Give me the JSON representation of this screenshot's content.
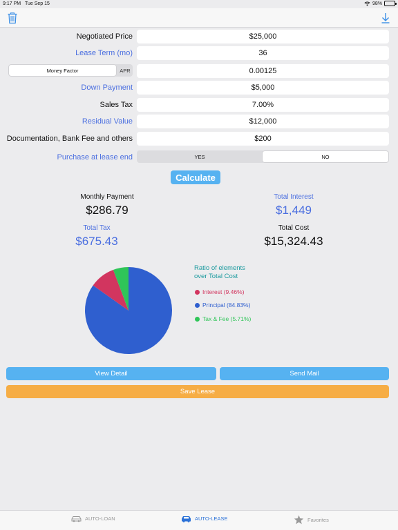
{
  "status_bar": {
    "time": "9:17 PM",
    "date": "Tue Sep 15",
    "battery": "98%"
  },
  "form": {
    "negotiated_price": {
      "label": "Negotiated Price",
      "value": "$25,000"
    },
    "lease_term": {
      "label": "Lease Term (mo)",
      "value": "36"
    },
    "rate_type": {
      "selected": "Money Factor",
      "other": "APR",
      "value": "0.00125"
    },
    "down_payment": {
      "label": "Down Payment",
      "value": "$5,000"
    },
    "sales_tax": {
      "label": "Sales Tax",
      "value": "7.00%"
    },
    "residual_value": {
      "label": "Residual Value",
      "value": "$12,000"
    },
    "fees": {
      "label": "Documentation, Bank Fee  and others",
      "value": "$200"
    },
    "purchase_at_end": {
      "label": "Purchase at lease end",
      "yes": "YES",
      "no": "NO",
      "selected": "NO"
    }
  },
  "calculate_label": "Calculate",
  "results": {
    "monthly_payment": {
      "label": "Monthly Payment",
      "value": "$286.79"
    },
    "total_interest": {
      "label": "Total Interest",
      "value": "$1,449"
    },
    "total_tax": {
      "label": "Total Tax",
      "value": "$675.43"
    },
    "total_cost": {
      "label": "Total Cost",
      "value": "$15,324.43"
    }
  },
  "chart_data": {
    "type": "pie",
    "title": "Ratio of elements over Total Cost",
    "title_lines": [
      "Ratio of elements",
      "over Total Cost"
    ],
    "slices": [
      {
        "name": "Interest",
        "percent": 9.46,
        "label": "Interest (9.46%)",
        "color": "#d2355f"
      },
      {
        "name": "Principal",
        "percent": 84.83,
        "label": "Principal (84.83%)",
        "color": "#2f5fcf"
      },
      {
        "name": "Tax & Fee",
        "percent": 5.71,
        "label": "Tax & Fee (5.71%)",
        "color": "#2fc558"
      }
    ]
  },
  "actions": {
    "view_detail": "View Detail",
    "send_mail": "Send Mail",
    "save_lease": "Save Lease"
  },
  "tabs": [
    {
      "label": "AUTO-LOAN",
      "icon": "car-icon",
      "active": false
    },
    {
      "label": "AUTO-LEASE",
      "icon": "car-icon",
      "active": true
    },
    {
      "label": "Favorites",
      "icon": "star-icon",
      "active": false
    }
  ],
  "colors": {
    "accent": "#4b6fe0",
    "button_blue": "#56b2f1",
    "button_orange": "#f6ad45",
    "legend_title": "#1b9a9e"
  }
}
